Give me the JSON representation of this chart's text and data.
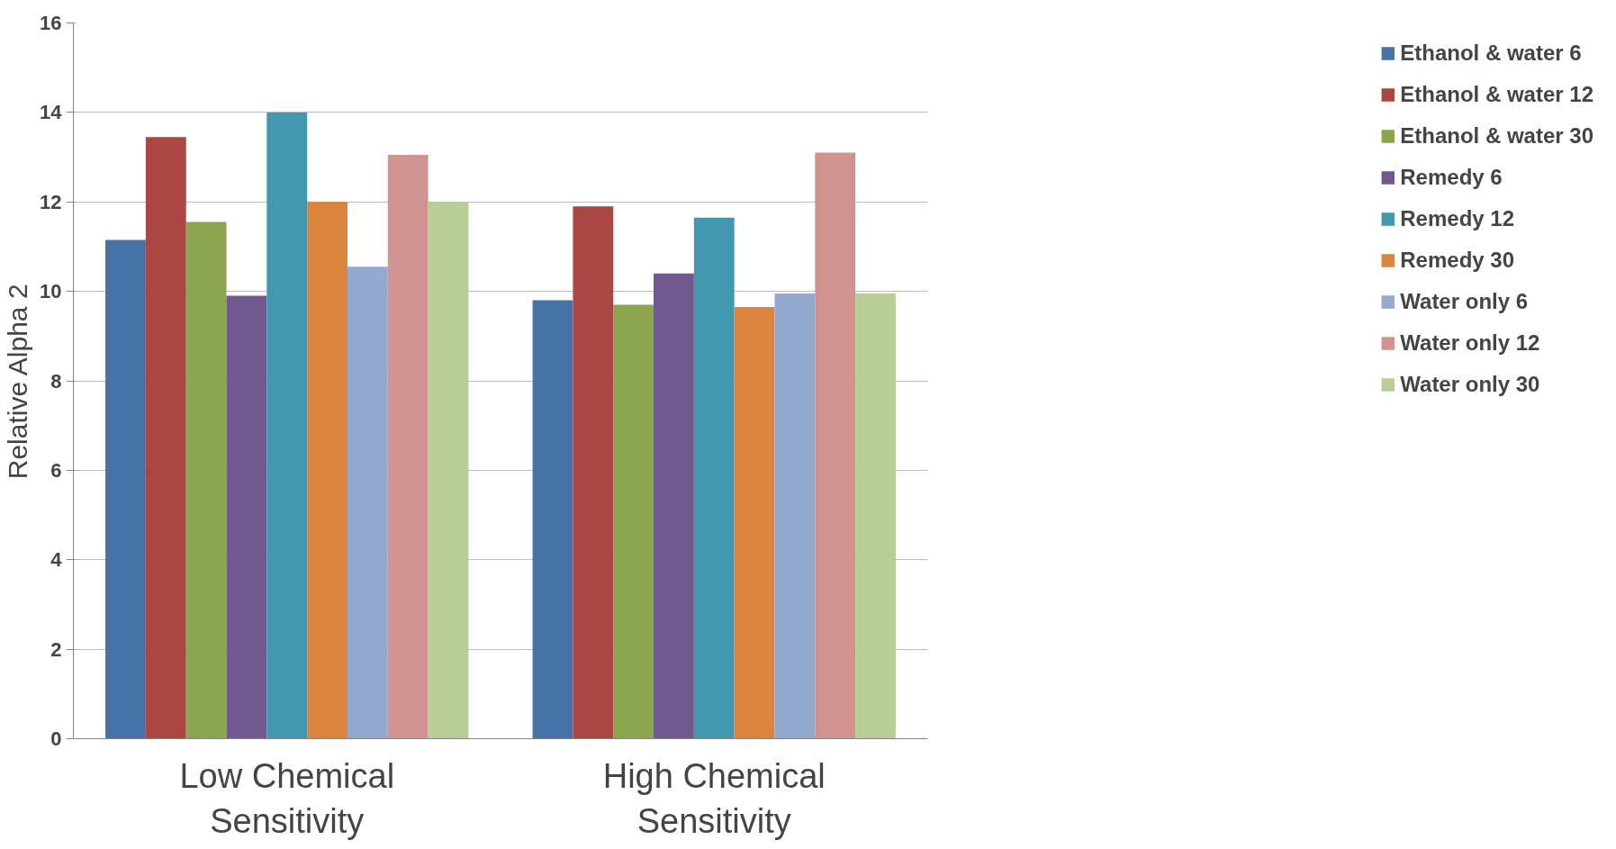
{
  "chart_data": {
    "type": "bar",
    "ylabel": "Relative Alpha 2",
    "categories": [
      "Low Chemical Sensitivity",
      "High Chemical Sensitivity"
    ],
    "ylim": [
      0,
      16
    ],
    "yticks": [
      0,
      2,
      4,
      6,
      8,
      10,
      12,
      14,
      16
    ],
    "grid": "y",
    "legend": "right",
    "series": [
      {
        "name": "Ethanol & water 6",
        "color": "#4572a7",
        "values": [
          11.15,
          9.8
        ]
      },
      {
        "name": "Ethanol & water 12",
        "color": "#aa4643",
        "values": [
          13.45,
          11.9
        ]
      },
      {
        "name": "Ethanol & water 30",
        "color": "#89a54e",
        "values": [
          11.55,
          9.7
        ]
      },
      {
        "name": "Remedy 6",
        "color": "#71588f",
        "values": [
          9.9,
          10.4
        ]
      },
      {
        "name": "Remedy 12",
        "color": "#4198af",
        "values": [
          14.0,
          11.65
        ]
      },
      {
        "name": "Remedy 30",
        "color": "#db843d",
        "values": [
          12.0,
          9.65
        ]
      },
      {
        "name": "Water only 6",
        "color": "#93a9cf",
        "values": [
          10.55,
          9.95
        ]
      },
      {
        "name": "Water only 12",
        "color": "#d19392",
        "values": [
          13.05,
          13.1
        ]
      },
      {
        "name": "Water only 30",
        "color": "#b9cd96",
        "values": [
          12.0,
          9.95
        ]
      }
    ]
  }
}
